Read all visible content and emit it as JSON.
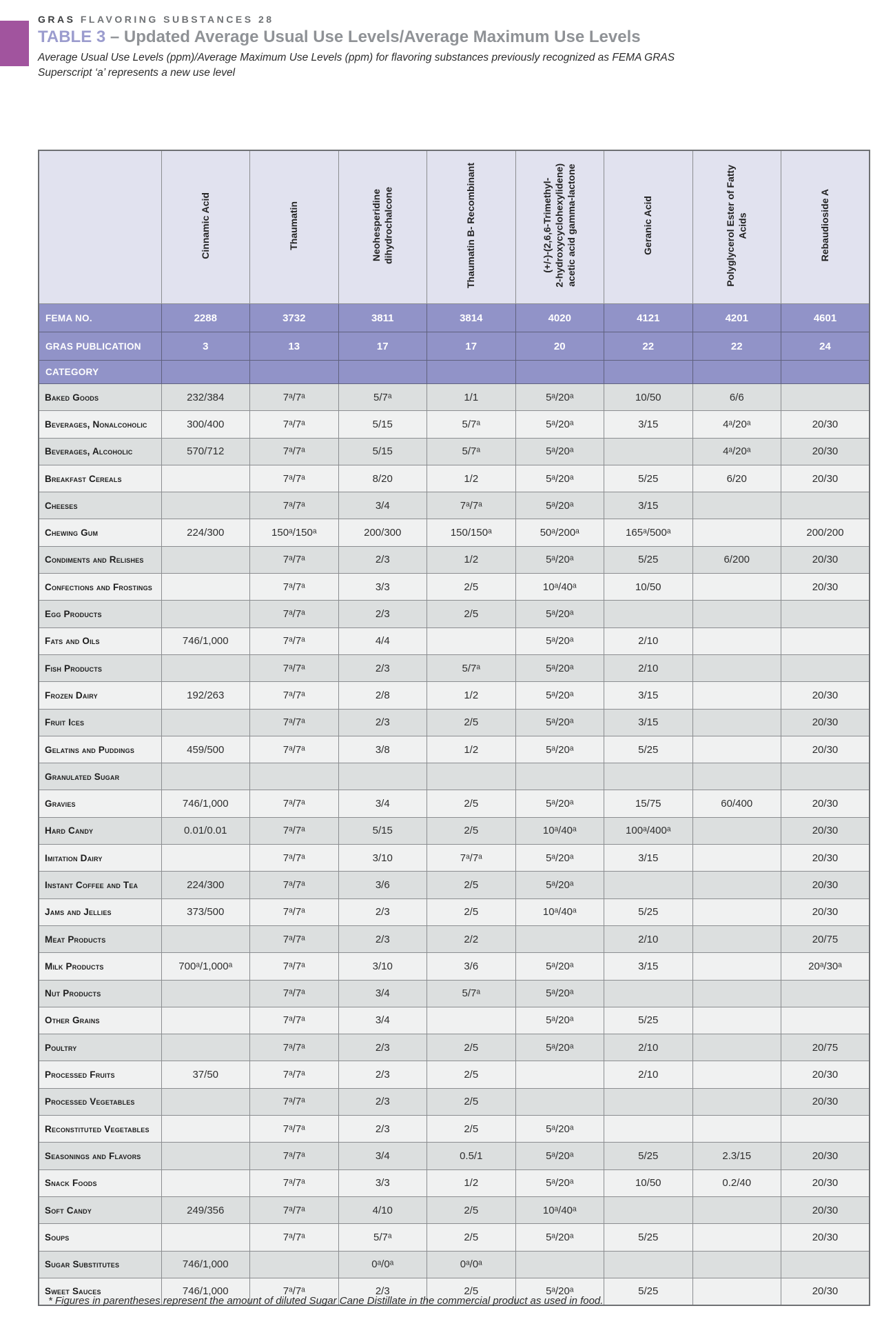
{
  "page": {
    "eyebrow_strong": "GRAS",
    "eyebrow_rest": "FLAVORING SUBSTANCES 28",
    "title_label": "TABLE 3",
    "title_rest": "– Updated Average Usual Use Levels/Average Maximum Use Levels",
    "subtitle_line1": "Average Usual Use Levels (ppm)/Average Maximum Use Levels (ppm) for flavoring substances previously recognized as FEMA GRAS",
    "subtitle_line2": "Superscript ‘a’ represents a new use level",
    "footnote": "* Figures in parentheses represent the amount of diluted Sugar Cane Distillate in the commercial product as used in food."
  },
  "colors": {
    "accent_square": "#a1549e",
    "band_purple": "#9193c8",
    "header_lavender": "#e1e2ef",
    "row_dark": "#dcdfdf",
    "row_light": "#f0f1f1",
    "title_periwinkle": "#9b9cce"
  },
  "table": {
    "row_labels": {
      "fema": "FEMA NO.",
      "gras": "GRAS PUBLICATION",
      "category": "CATEGORY"
    },
    "substances": [
      {
        "name": "Cinnamic Acid",
        "fema": "2288",
        "gras": "3"
      },
      {
        "name": "Thaumatin",
        "fema": "3732",
        "gras": "13"
      },
      {
        "name": "Neohesperidine\ndihydrochalcone",
        "fema": "3811",
        "gras": "17"
      },
      {
        "name": "Thaumatin B- Recombinant",
        "fema": "3814",
        "gras": "17"
      },
      {
        "name": "(+/-)-(2,6,6-Trimethyl-\n2-hydroxycyclohexylidene)\nacetic acid gamma-lactone",
        "fema": "4020",
        "gras": "20"
      },
      {
        "name": "Geranic Acid",
        "fema": "4121",
        "gras": "22"
      },
      {
        "name": "Polyglycerol Ester of Fatty\nAcids",
        "fema": "4201",
        "gras": "22"
      },
      {
        "name": "Rebaudioside A",
        "fema": "4601",
        "gras": "24"
      }
    ],
    "categories": [
      {
        "label": "Baked Goods",
        "values": [
          "232/384",
          "7ᵃ/7ᵃ",
          "5/7ᵃ",
          "1/1",
          "5ᵃ/20ᵃ",
          "10/50",
          "6/6",
          ""
        ]
      },
      {
        "label": "Beverages, Nonalcoholic",
        "values": [
          "300/400",
          "7ᵃ/7ᵃ",
          "5/15",
          "5/7ᵃ",
          "5ᵃ/20ᵃ",
          "3/15",
          "4ᵃ/20ᵃ",
          "20/30"
        ]
      },
      {
        "label": "Beverages, Alcoholic",
        "values": [
          "570/712",
          "7ᵃ/7ᵃ",
          "5/15",
          "5/7ᵃ",
          "5ᵃ/20ᵃ",
          "",
          "4ᵃ/20ᵃ",
          "20/30"
        ]
      },
      {
        "label": "Breakfast Cereals",
        "values": [
          "",
          "7ᵃ/7ᵃ",
          "8/20",
          "1/2",
          "5ᵃ/20ᵃ",
          "5/25",
          "6/20",
          "20/30"
        ]
      },
      {
        "label": "Cheeses",
        "values": [
          "",
          "7ᵃ/7ᵃ",
          "3/4",
          "7ᵃ/7ᵃ",
          "5ᵃ/20ᵃ",
          "3/15",
          "",
          ""
        ]
      },
      {
        "label": "Chewing Gum",
        "values": [
          "224/300",
          "150ᵃ/150ᵃ",
          "200/300",
          "150/150ᵃ",
          "50ᵃ/200ᵃ",
          "165ᵃ/500ᵃ",
          "",
          "200/200"
        ]
      },
      {
        "label": "Condiments and Relishes",
        "values": [
          "",
          "7ᵃ/7ᵃ",
          "2/3",
          "1/2",
          "5ᵃ/20ᵃ",
          "5/25",
          "6/200",
          "20/30"
        ]
      },
      {
        "label": "Confections and Frostings",
        "values": [
          "",
          "7ᵃ/7ᵃ",
          "3/3",
          "2/5",
          "10ᵃ/40ᵃ",
          "10/50",
          "",
          "20/30"
        ]
      },
      {
        "label": "Egg Products",
        "values": [
          "",
          "7ᵃ/7ᵃ",
          "2/3",
          "2/5",
          "5ᵃ/20ᵃ",
          "",
          "",
          ""
        ]
      },
      {
        "label": "Fats and Oils",
        "values": [
          "746/1,000",
          "7ᵃ/7ᵃ",
          "4/4",
          "",
          "5ᵃ/20ᵃ",
          "2/10",
          "",
          ""
        ]
      },
      {
        "label": "Fish Products",
        "values": [
          "",
          "7ᵃ/7ᵃ",
          "2/3",
          "5/7ᵃ",
          "5ᵃ/20ᵃ",
          "2/10",
          "",
          ""
        ]
      },
      {
        "label": "Frozen Dairy",
        "values": [
          "192/263",
          "7ᵃ/7ᵃ",
          "2/8",
          "1/2",
          "5ᵃ/20ᵃ",
          "3/15",
          "",
          "20/30"
        ]
      },
      {
        "label": "Fruit Ices",
        "values": [
          "",
          "7ᵃ/7ᵃ",
          "2/3",
          "2/5",
          "5ᵃ/20ᵃ",
          "3/15",
          "",
          "20/30"
        ]
      },
      {
        "label": "Gelatins and Puddings",
        "values": [
          "459/500",
          "7ᵃ/7ᵃ",
          "3/8",
          "1/2",
          "5ᵃ/20ᵃ",
          "5/25",
          "",
          "20/30"
        ]
      },
      {
        "label": "Granulated Sugar",
        "values": [
          "",
          "",
          "",
          "",
          "",
          "",
          "",
          ""
        ]
      },
      {
        "label": "Gravies",
        "values": [
          "746/1,000",
          "7ᵃ/7ᵃ",
          "3/4",
          "2/5",
          "5ᵃ/20ᵃ",
          "15/75",
          "60/400",
          "20/30"
        ]
      },
      {
        "label": "Hard Candy",
        "values": [
          "0.01/0.01",
          "7ᵃ/7ᵃ",
          "5/15",
          "2/5",
          "10ᵃ/40ᵃ",
          "100ᵃ/400ᵃ",
          "",
          "20/30"
        ]
      },
      {
        "label": "Imitation Dairy",
        "values": [
          "",
          "7ᵃ/7ᵃ",
          "3/10",
          "7ᵃ/7ᵃ",
          "5ᵃ/20ᵃ",
          "3/15",
          "",
          "20/30"
        ]
      },
      {
        "label": "Instant Coffee and Tea",
        "values": [
          "224/300",
          "7ᵃ/7ᵃ",
          "3/6",
          "2/5",
          "5ᵃ/20ᵃ",
          "",
          "",
          "20/30"
        ]
      },
      {
        "label": "Jams and Jellies",
        "values": [
          "373/500",
          "7ᵃ/7ᵃ",
          "2/3",
          "2/5",
          "10ᵃ/40ᵃ",
          "5/25",
          "",
          "20/30"
        ]
      },
      {
        "label": "Meat Products",
        "values": [
          "",
          "7ᵃ/7ᵃ",
          "2/3",
          "2/2",
          "",
          "2/10",
          "",
          "20/75"
        ]
      },
      {
        "label": "Milk Products",
        "values": [
          "700ᵃ/1,000ᵃ",
          "7ᵃ/7ᵃ",
          "3/10",
          "3/6",
          "5ᵃ/20ᵃ",
          "3/15",
          "",
          "20ᵃ/30ᵃ"
        ]
      },
      {
        "label": "Nut Products",
        "values": [
          "",
          "7ᵃ/7ᵃ",
          "3/4",
          "5/7ᵃ",
          "5ᵃ/20ᵃ",
          "",
          "",
          ""
        ]
      },
      {
        "label": "Other Grains",
        "values": [
          "",
          "7ᵃ/7ᵃ",
          "3/4",
          "",
          "5ᵃ/20ᵃ",
          "5/25",
          "",
          ""
        ]
      },
      {
        "label": "Poultry",
        "values": [
          "",
          "7ᵃ/7ᵃ",
          "2/3",
          "2/5",
          "5ᵃ/20ᵃ",
          "2/10",
          "",
          "20/75"
        ]
      },
      {
        "label": "Processed Fruits",
        "values": [
          "37/50",
          "7ᵃ/7ᵃ",
          "2/3",
          "2/5",
          "",
          "2/10",
          "",
          "20/30"
        ]
      },
      {
        "label": "Processed Vegetables",
        "values": [
          "",
          "7ᵃ/7ᵃ",
          "2/3",
          "2/5",
          "",
          "",
          "",
          "20/30"
        ]
      },
      {
        "label": "Reconstituted Vegetables",
        "values": [
          "",
          "7ᵃ/7ᵃ",
          "2/3",
          "2/5",
          "5ᵃ/20ᵃ",
          "",
          "",
          ""
        ]
      },
      {
        "label": "Seasonings and Flavors",
        "values": [
          "",
          "7ᵃ/7ᵃ",
          "3/4",
          "0.5/1",
          "5ᵃ/20ᵃ",
          "5/25",
          "2.3/15",
          "20/30"
        ]
      },
      {
        "label": "Snack Foods",
        "values": [
          "",
          "7ᵃ/7ᵃ",
          "3/3",
          "1/2",
          "5ᵃ/20ᵃ",
          "10/50",
          "0.2/40",
          "20/30"
        ]
      },
      {
        "label": "Soft Candy",
        "values": [
          "249/356",
          "7ᵃ/7ᵃ",
          "4/10",
          "2/5",
          "10ᵃ/40ᵃ",
          "",
          "",
          "20/30"
        ]
      },
      {
        "label": "Soups",
        "values": [
          "",
          "7ᵃ/7ᵃ",
          "5/7ᵃ",
          "2/5",
          "5ᵃ/20ᵃ",
          "5/25",
          "",
          "20/30"
        ]
      },
      {
        "label": "Sugar Substitutes",
        "values": [
          "746/1,000",
          "",
          "0ᵃ/0ᵃ",
          "0ᵃ/0ᵃ",
          "",
          "",
          "",
          ""
        ]
      },
      {
        "label": "Sweet Sauces",
        "values": [
          "746/1,000",
          "7ᵃ/7ᵃ",
          "2/3",
          "2/5",
          "5ᵃ/20ᵃ",
          "5/25",
          "",
          "20/30"
        ]
      }
    ]
  }
}
